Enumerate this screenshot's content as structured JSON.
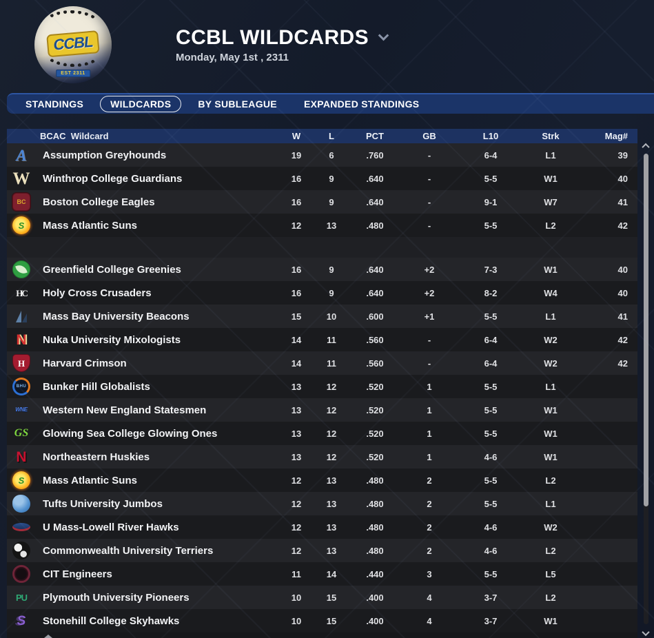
{
  "theme": {
    "page_bg": "#141b2a",
    "tab_bar": "#1b3468",
    "table_header_bg": "#1d3261",
    "row_light": "#242529",
    "row_dark": "#1a1b1e",
    "spacer": "#1f2024",
    "selected_tab_outline": "#e8ebf0",
    "logo_plate_yellow": "#e9c62c",
    "logo_plate_blue": "#1d4f8f"
  },
  "header": {
    "title": "CCBL WILDCARDS",
    "subtitle": "Monday, May 1st , 2311",
    "logo_text": "CCBL",
    "logo_est": "EST 2311"
  },
  "tabs": [
    {
      "label": "STANDINGS",
      "selected": false
    },
    {
      "label": "WILDCARDS",
      "selected": true
    },
    {
      "label": "BY SUBLEAGUE",
      "selected": false
    },
    {
      "label": "EXPANDED STANDINGS",
      "selected": false
    }
  ],
  "table": {
    "group_label": "BCAC  Wildcard",
    "columns": [
      "W",
      "L",
      "PCT",
      "GB",
      "L10",
      "Strk",
      "Mag#"
    ],
    "sections": [
      {
        "rows": [
          {
            "team": "Assumption Greyhounds",
            "w": "19",
            "l": "6",
            "pct": ".760",
            "gb": "-",
            "l10": "6-4",
            "strk": "L1",
            "mag": "39",
            "logo": {
              "cls": "lg-assumption",
              "text": "A",
              "fg": "#4a85d8"
            }
          },
          {
            "team": "Winthrop College Guardians",
            "w": "16",
            "l": "9",
            "pct": ".640",
            "gb": "-",
            "l10": "5-5",
            "strk": "W1",
            "mag": "40",
            "logo": {
              "cls": "lg-winthrop",
              "text": "W",
              "fg": "#ece1bd"
            }
          },
          {
            "team": "Boston College Eagles",
            "w": "16",
            "l": "9",
            "pct": ".640",
            "gb": "-",
            "l10": "9-1",
            "strk": "W7",
            "mag": "41",
            "logo": {
              "cls": "lg-bc",
              "text": "BC",
              "fg": "#d8a62c",
              "bg": "#7e1f2d"
            }
          },
          {
            "team": "Mass Atlantic Suns",
            "w": "12",
            "l": "13",
            "pct": ".480",
            "gb": "-",
            "l10": "5-5",
            "strk": "L2",
            "mag": "42",
            "logo": {
              "cls": "lg-sun",
              "text": "S",
              "fg": "#2e8f2a"
            }
          }
        ]
      },
      {
        "rows": [
          {
            "team": "Greenfield College Greenies",
            "w": "16",
            "l": "9",
            "pct": ".640",
            "gb": "+2",
            "l10": "7-3",
            "strk": "W1",
            "mag": "40",
            "logo": {
              "cls": "lg-leaf",
              "text": "",
              "bg": "#2f9e42"
            }
          },
          {
            "team": "Holy Cross Crusaders",
            "w": "16",
            "l": "9",
            "pct": ".640",
            "gb": "+2",
            "l10": "8-2",
            "strk": "W4",
            "mag": "40",
            "logo": {
              "cls": "lg-hc",
              "text": "HC",
              "fg": "#f2f2f2"
            }
          },
          {
            "team": "Mass Bay University Beacons",
            "w": "15",
            "l": "10",
            "pct": ".600",
            "gb": "+1",
            "l10": "5-5",
            "strk": "L1",
            "mag": "41",
            "logo": {
              "cls": "lg-sail",
              "text": ""
            }
          },
          {
            "team": "Nuka University Mixologists",
            "w": "14",
            "l": "11",
            "pct": ".560",
            "gb": "-",
            "l10": "6-4",
            "strk": "W2",
            "mag": "42",
            "logo": {
              "cls": "lg-nuka",
              "text": "N",
              "fg": "#d42f2f"
            }
          },
          {
            "team": "Harvard Crimson",
            "w": "14",
            "l": "11",
            "pct": ".560",
            "gb": "-",
            "l10": "6-4",
            "strk": "W2",
            "mag": "42",
            "logo": {
              "cls": "lg-shield",
              "text": "H",
              "fg": "#ffffff",
              "bg": "#a41c30"
            }
          },
          {
            "team": "Bunker Hill Globalists",
            "w": "13",
            "l": "12",
            "pct": ".520",
            "gb": "1",
            "l10": "5-5",
            "strk": "L1",
            "mag": "",
            "logo": {
              "cls": "lg-bhu",
              "text": "BHU",
              "fg": "#7fb3e8"
            }
          },
          {
            "team": "Western New England Statesmen",
            "w": "13",
            "l": "12",
            "pct": ".520",
            "gb": "1",
            "l10": "5-5",
            "strk": "W1",
            "mag": "",
            "logo": {
              "cls": "lg-wne",
              "text": "WNE",
              "fg": "#4a7ae0"
            }
          },
          {
            "team": "Glowing Sea College Glowing Ones",
            "w": "13",
            "l": "12",
            "pct": ".520",
            "gb": "1",
            "l10": "5-5",
            "strk": "W1",
            "mag": "",
            "logo": {
              "cls": "lg-gs",
              "text": "GS",
              "fg": "#7ed63f"
            }
          },
          {
            "team": "Northeastern Huskies",
            "w": "13",
            "l": "12",
            "pct": ".520",
            "gb": "1",
            "l10": "4-6",
            "strk": "W1",
            "mag": "",
            "logo": {
              "cls": "lg-ne",
              "text": "N",
              "fg": "#c8102e"
            }
          },
          {
            "team": "Mass Atlantic Suns",
            "w": "12",
            "l": "13",
            "pct": ".480",
            "gb": "2",
            "l10": "5-5",
            "strk": "L2",
            "mag": "",
            "logo": {
              "cls": "lg-sun",
              "text": "S",
              "fg": "#2e8f2a"
            }
          },
          {
            "team": "Tufts University Jumbos",
            "w": "12",
            "l": "13",
            "pct": ".480",
            "gb": "2",
            "l10": "5-5",
            "strk": "L1",
            "mag": "",
            "logo": {
              "cls": "lg-elephant",
              "text": ""
            }
          },
          {
            "team": "U Mass-Lowell River Hawks",
            "w": "12",
            "l": "13",
            "pct": ".480",
            "gb": "2",
            "l10": "4-6",
            "strk": "W2",
            "mag": "",
            "logo": {
              "cls": "lg-hawk",
              "text": ""
            }
          },
          {
            "team": "Commonwealth University Terriers",
            "w": "12",
            "l": "13",
            "pct": ".480",
            "gb": "2",
            "l10": "4-6",
            "strk": "L2",
            "mag": "",
            "logo": {
              "cls": "lg-terrier",
              "text": ""
            }
          },
          {
            "team": "CIT Engineers",
            "w": "11",
            "l": "14",
            "pct": ".440",
            "gb": "3",
            "l10": "5-5",
            "strk": "L5",
            "mag": "",
            "logo": {
              "cls": "lg-cit",
              "text": ""
            }
          },
          {
            "team": "Plymouth University Pioneers",
            "w": "10",
            "l": "15",
            "pct": ".400",
            "gb": "4",
            "l10": "3-7",
            "strk": "L2",
            "mag": "",
            "logo": {
              "cls": "lg-pu",
              "text": "PU",
              "fg": "#2fa874"
            }
          },
          {
            "team": "Stonehill College Skyhawks",
            "w": "10",
            "l": "15",
            "pct": ".400",
            "gb": "4",
            "l10": "3-7",
            "strk": "W1",
            "mag": "",
            "logo": {
              "cls": "lg-stonehill",
              "text": "S",
              "fg": "#8a5fd0"
            }
          }
        ]
      }
    ]
  }
}
